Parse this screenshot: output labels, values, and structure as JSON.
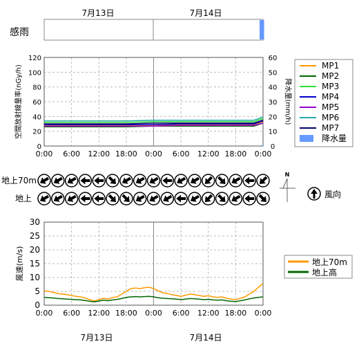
{
  "dates": [
    "7月13日",
    "7月14日"
  ],
  "rain_sense": {
    "label": "感雨"
  },
  "radiation_chart": {
    "type": "line",
    "ylabel_left": "空間放射線量率(nGy/h)",
    "ylabel_right": "降水量(mm/h)",
    "yticks_left": [
      "120",
      "100",
      "80",
      "60",
      "40",
      "20",
      "0"
    ],
    "yticks_right": [
      "60",
      "50",
      "40",
      "30",
      "20",
      "10",
      "0"
    ],
    "xticks": [
      "0:00",
      "6:00",
      "12:00",
      "18:00",
      "0:00",
      "6:00",
      "12:00",
      "18:00",
      "0:00"
    ],
    "legend": [
      {
        "name": "MP1",
        "color": "#ff9900"
      },
      {
        "name": "MP2",
        "color": "#006600"
      },
      {
        "name": "MP3",
        "color": "#33dd33"
      },
      {
        "name": "MP4",
        "color": "#0000cc"
      },
      {
        "name": "MP5",
        "color": "#9900cc"
      },
      {
        "name": "MP6",
        "color": "#22aaaa"
      },
      {
        "name": "MP7",
        "color": "#000066"
      },
      {
        "name": "降水量",
        "color": "#6699ff"
      }
    ]
  },
  "wind_direction": {
    "rows": [
      "地上70m",
      "地上"
    ],
    "north_label": "N",
    "legend_label": "風向"
  },
  "wind_speed_chart": {
    "type": "line",
    "ylabel": "風速(m/s)",
    "yticks": [
      "30",
      "25",
      "20",
      "15",
      "10",
      "5",
      "0"
    ],
    "xticks": [
      "0:00",
      "6:00",
      "12:00",
      "18:00",
      "0:00",
      "6:00",
      "12:00",
      "18:00",
      "0:00"
    ],
    "legend": [
      {
        "name": "地上70m",
        "color": "#ff9900"
      },
      {
        "name": "地上高",
        "color": "#006600"
      }
    ]
  },
  "chart_data": [
    {
      "type": "line",
      "x_unit": "hours since 7月13日 0:00",
      "xlim": [
        0,
        48
      ],
      "ylim": [
        0,
        120
      ],
      "y2lim": [
        0,
        60
      ],
      "series": [
        {
          "name": "MP1",
          "color": "#ff9900",
          "x": [
            0,
            6,
            12,
            18,
            24,
            30,
            36,
            42,
            46,
            48
          ],
          "values": [
            28,
            28,
            28,
            28,
            28,
            29,
            29,
            29,
            29,
            33
          ]
        },
        {
          "name": "MP2",
          "color": "#006600",
          "x": [
            0,
            6,
            12,
            18,
            24,
            30,
            36,
            42,
            46,
            48
          ],
          "values": [
            26,
            26,
            26,
            26,
            27,
            27,
            27,
            27,
            27,
            31
          ]
        },
        {
          "name": "MP3",
          "color": "#33dd33",
          "x": [
            0,
            6,
            12,
            18,
            24,
            30,
            36,
            42,
            46,
            48
          ],
          "values": [
            32,
            32,
            32,
            32,
            33,
            33,
            33,
            33,
            33,
            37
          ]
        },
        {
          "name": "MP4",
          "color": "#0000cc",
          "x": [
            0,
            6,
            12,
            18,
            24,
            30,
            36,
            42,
            46,
            48
          ],
          "values": [
            29,
            29,
            29,
            29,
            29,
            30,
            30,
            30,
            30,
            34
          ]
        },
        {
          "name": "MP5",
          "color": "#9900cc",
          "x": [
            0,
            6,
            12,
            18,
            24,
            30,
            36,
            42,
            46,
            48
          ],
          "values": [
            27,
            27,
            27,
            27,
            27,
            28,
            28,
            28,
            28,
            31
          ]
        },
        {
          "name": "MP6",
          "color": "#22aaaa",
          "x": [
            0,
            6,
            12,
            18,
            24,
            30,
            36,
            42,
            46,
            48
          ],
          "values": [
            34,
            34,
            34,
            34,
            35,
            35,
            35,
            35,
            35,
            39
          ]
        },
        {
          "name": "MP7",
          "color": "#000066",
          "x": [
            0,
            6,
            12,
            18,
            24,
            30,
            36,
            42,
            46,
            48
          ],
          "values": [
            30,
            30,
            30,
            30,
            31,
            31,
            31,
            31,
            31,
            35
          ]
        }
      ],
      "precipitation": {
        "name": "降水量",
        "x": [
          47.5,
          48
        ],
        "values": [
          0.5,
          0.5
        ]
      },
      "rain_sense_on": [
        [
          47,
          48
        ]
      ]
    },
    {
      "type": "line",
      "x_unit": "hours since 7月13日 0:00",
      "xlim": [
        0,
        48
      ],
      "ylim": [
        0,
        30
      ],
      "series": [
        {
          "name": "地上70m",
          "color": "#ff9900",
          "x": [
            0,
            1,
            2,
            3,
            4,
            5,
            6,
            7,
            8,
            9,
            10,
            11,
            12,
            13,
            14,
            15,
            16,
            17,
            18,
            19,
            20,
            21,
            22,
            23,
            24,
            25,
            26,
            27,
            28,
            29,
            30,
            31,
            32,
            33,
            34,
            35,
            36,
            37,
            38,
            39,
            40,
            41,
            42,
            43,
            44,
            45,
            46,
            47,
            48
          ],
          "values": [
            5.2,
            5.0,
            4.6,
            4.2,
            4.0,
            3.8,
            3.5,
            3.2,
            3.0,
            2.6,
            2.0,
            1.5,
            2.0,
            2.5,
            2.2,
            2.8,
            3.0,
            4.0,
            5.0,
            6.0,
            6.2,
            6.0,
            6.3,
            6.5,
            6.0,
            5.2,
            4.5,
            4.2,
            3.8,
            3.5,
            3.2,
            3.6,
            4.0,
            3.8,
            3.5,
            3.2,
            3.4,
            3.0,
            2.8,
            3.0,
            2.5,
            2.2,
            2.0,
            2.5,
            3.0,
            4.0,
            5.0,
            6.5,
            7.8
          ]
        },
        {
          "name": "地上高",
          "color": "#006600",
          "x": [
            0,
            1,
            2,
            3,
            4,
            5,
            6,
            7,
            8,
            9,
            10,
            11,
            12,
            13,
            14,
            15,
            16,
            17,
            18,
            19,
            20,
            21,
            22,
            23,
            24,
            25,
            26,
            27,
            28,
            29,
            30,
            31,
            32,
            33,
            34,
            35,
            36,
            37,
            38,
            39,
            40,
            41,
            42,
            43,
            44,
            45,
            46,
            47,
            48
          ],
          "values": [
            2.8,
            2.7,
            2.6,
            2.4,
            2.3,
            2.2,
            2.1,
            2.0,
            1.9,
            1.7,
            1.4,
            1.2,
            1.5,
            1.8,
            1.6,
            1.9,
            2.1,
            2.4,
            2.8,
            3.0,
            3.1,
            3.0,
            3.1,
            3.2,
            3.0,
            2.7,
            2.5,
            2.4,
            2.3,
            2.2,
            2.0,
            2.2,
            2.4,
            2.3,
            2.2,
            2.0,
            2.1,
            1.9,
            1.8,
            1.9,
            1.6,
            1.4,
            1.3,
            1.6,
            1.9,
            2.3,
            2.6,
            2.8,
            3.0
          ]
        }
      ]
    },
    {
      "type": "table",
      "title": "風向",
      "x_unit": "hours since 7月13日 0:00",
      "x": [
        0,
        3,
        6,
        9,
        12,
        15,
        18,
        21,
        24,
        27,
        30,
        33,
        36,
        39,
        42,
        45,
        48
      ],
      "rows": [
        {
          "name": "地上70m",
          "direction_deg_toward": [
            240,
            240,
            240,
            270,
            270,
            135,
            240,
            240,
            240,
            270,
            240,
            240,
            225,
            135,
            240,
            270,
            225
          ]
        },
        {
          "name": "地上",
          "direction_deg_toward": [
            240,
            240,
            240,
            270,
            270,
            135,
            135,
            240,
            240,
            240,
            270,
            240,
            225,
            135,
            240,
            270,
            135
          ]
        }
      ]
    }
  ]
}
